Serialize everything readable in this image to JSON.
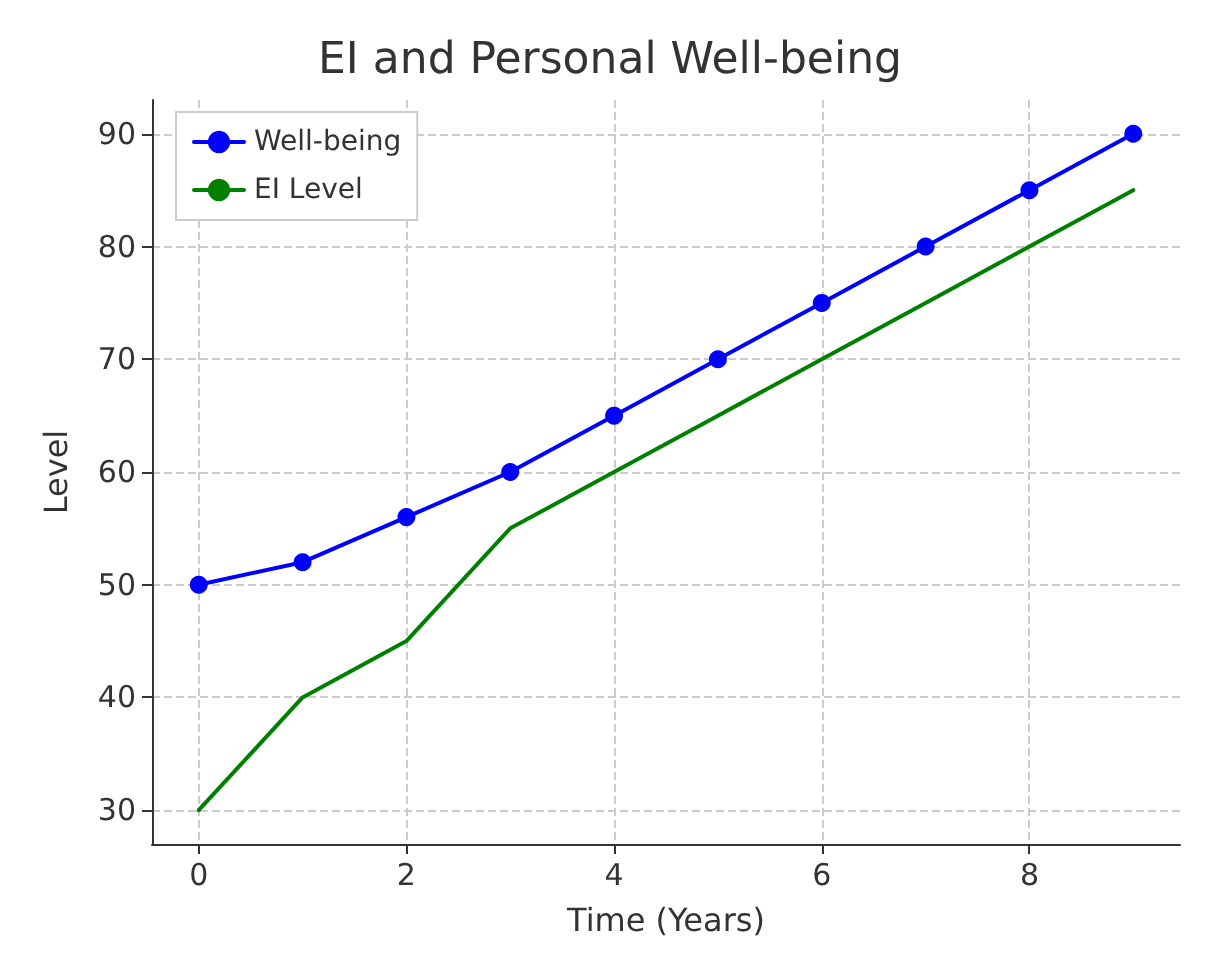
{
  "chart_data": {
    "type": "line",
    "title": "EI and Personal Well-being",
    "xlabel": "Time (Years)",
    "ylabel": "Level",
    "x": [
      0,
      1,
      2,
      3,
      4,
      5,
      6,
      7,
      8,
      9
    ],
    "series": [
      {
        "name": "Well-being",
        "color": "#0000ff",
        "marker": "circle",
        "values": [
          50,
          52,
          56,
          60,
          65,
          70,
          75,
          80,
          85,
          90
        ]
      },
      {
        "name": "EI Level",
        "color": "#008000",
        "marker": "none",
        "values": [
          30,
          40,
          45,
          55,
          60,
          65,
          70,
          75,
          80,
          85
        ]
      }
    ],
    "xlim": [
      -0.45,
      9.45
    ],
    "xticks": [
      0,
      2,
      4,
      6,
      8
    ],
    "ylim": [
      27,
      93
    ],
    "yticks": [
      30,
      40,
      50,
      60,
      70,
      80,
      90
    ],
    "grid": true,
    "legend": "top left",
    "line_style": "solid"
  }
}
